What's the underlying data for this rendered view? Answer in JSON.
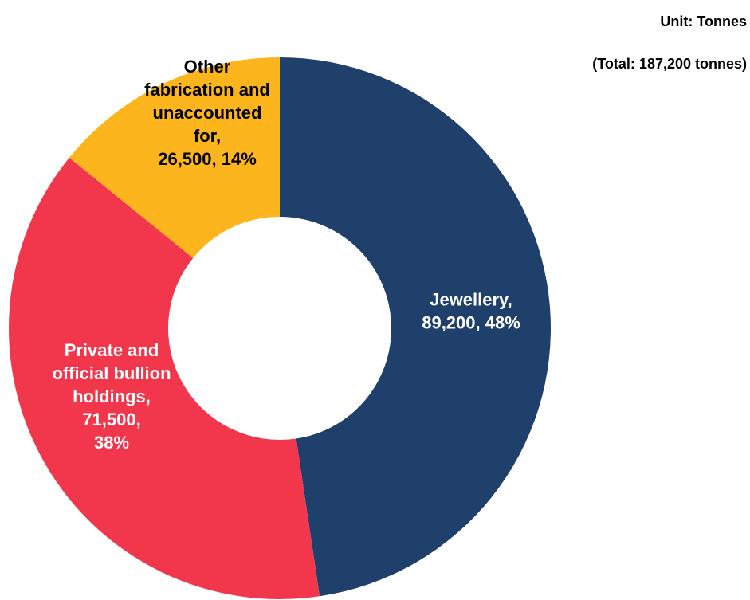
{
  "chart_data": {
    "type": "pie",
    "style": "donut",
    "unit_note": "Unit: Tonnes",
    "total_note": "(Total: 187,200 tonnes)",
    "slices": [
      {
        "name": "Jewellery",
        "value": 89200,
        "percent": 48,
        "color": "#1f406a",
        "label_color": "#ffffff",
        "label_lines": [
          "Jewellery,",
          "89,200, 48%"
        ]
      },
      {
        "name": "Private and official bullion holdings",
        "value": 71500,
        "percent": 38,
        "color": "#f2374c",
        "label_color": "#ffffff",
        "label_lines": [
          "Private and",
          "official bullion",
          "holdings,",
          "71,500,",
          "38%"
        ]
      },
      {
        "name": "Other fabrication and unaccounted for",
        "value": 26500,
        "percent": 14,
        "color": "#fcb51d",
        "label_color": "#000000",
        "label_lines": [
          "Other",
          "fabrication and",
          "unaccounted",
          "for,",
          "26,500, 14%"
        ]
      }
    ]
  }
}
